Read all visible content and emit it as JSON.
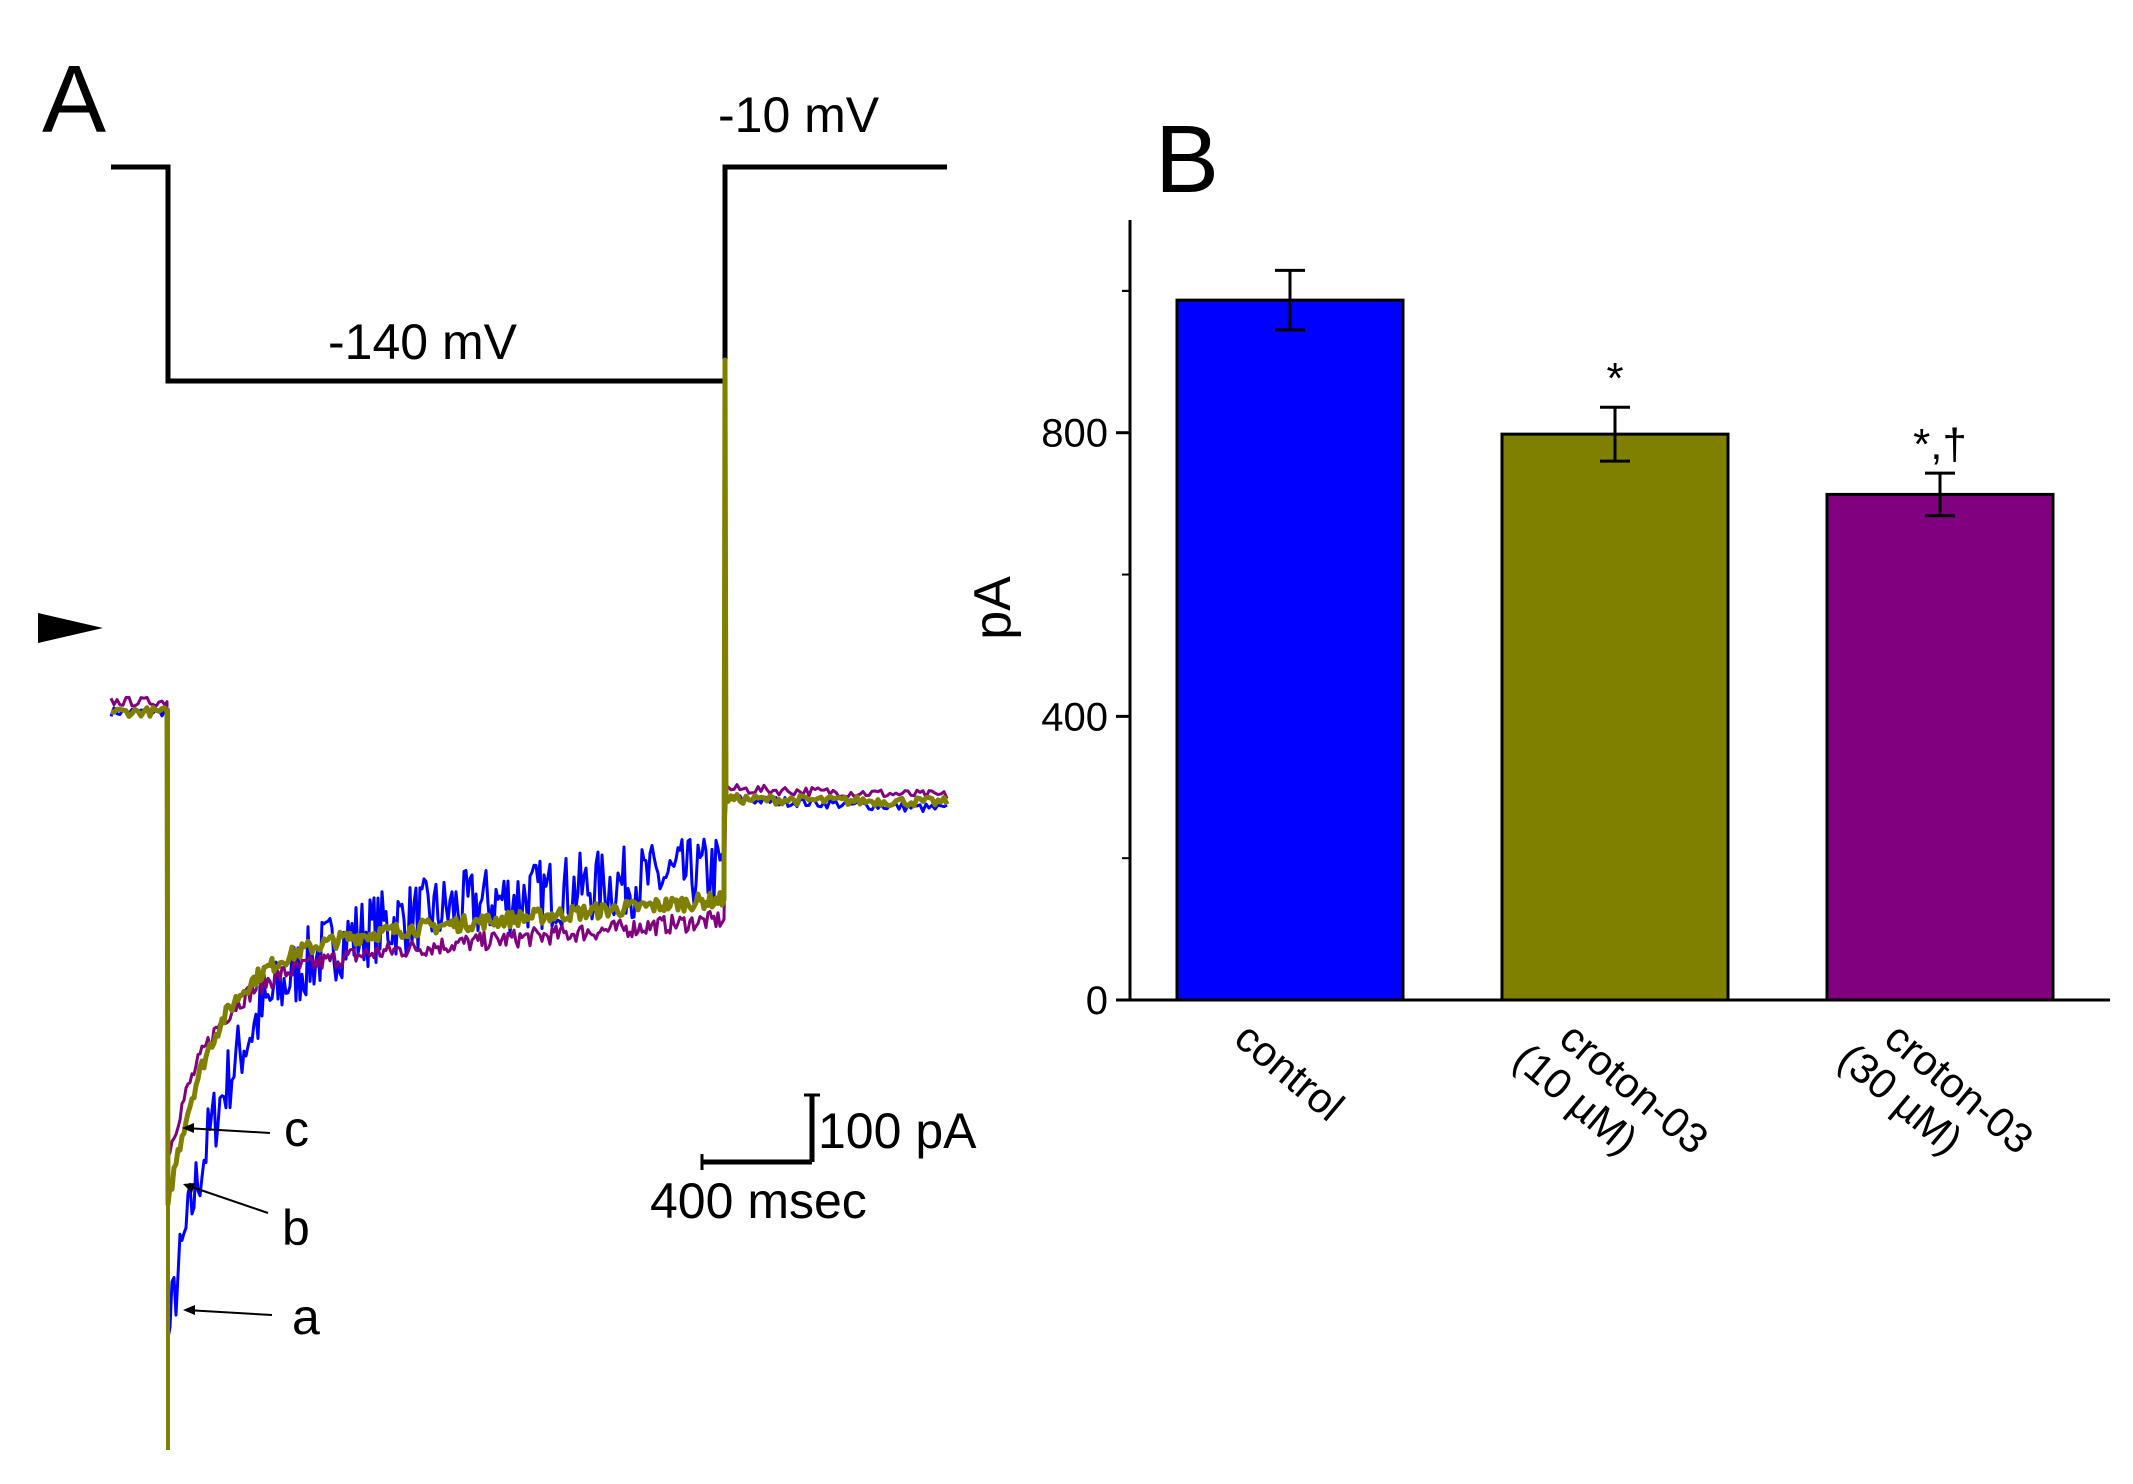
{
  "panel_a": {
    "letter": "A",
    "protocol": {
      "holding_label": "-10 mV",
      "step_label": "-140 mV"
    },
    "trace_labels": [
      "c",
      "b",
      "a"
    ],
    "scale_bar": {
      "current_label": "100 pA",
      "time_label": "400 msec"
    }
  },
  "panel_b": {
    "letter": "B"
  },
  "colors": {
    "control": "#0000ff",
    "croton_10": "#808000",
    "croton_30": "#800080",
    "axis": "#000000"
  },
  "chart_data": [
    {
      "type": "line",
      "title": "",
      "description_of_series_only": "Current traces during hyperpolarizing step from -10 mV to -140 mV",
      "xlabel": "",
      "ylabel": "",
      "scale_bar": {
        "time_ms": 400,
        "current_pA": 100
      },
      "series": [
        {
          "name": "a",
          "label": "control",
          "color": "#0000ff",
          "peak_pA": -1060,
          "late_pA": -470,
          "noise": 45
        },
        {
          "name": "b",
          "label": "croton-03 (10 µM)",
          "color": "#808000",
          "peak_pA": -860,
          "late_pA": -480,
          "noise": 12
        },
        {
          "name": "c",
          "label": "croton-03 (30 µM)",
          "color": "#800080",
          "peak_pA": -790,
          "late_pA": -510,
          "noise": 14
        }
      ]
    },
    {
      "type": "bar",
      "title": "",
      "xlabel": "",
      "ylabel": "pA",
      "ylim": [
        0,
        1100
      ],
      "yticks": [
        0,
        400,
        800
      ],
      "categories": [
        {
          "line1": "control",
          "line2": ""
        },
        {
          "line1": "croton-03",
          "line2": "(10 µM)"
        },
        {
          "line1": "croton-03",
          "line2": "(30 µM)"
        }
      ],
      "values": [
        987,
        798,
        713
      ],
      "errors": [
        42,
        38,
        30
      ],
      "significance": [
        "",
        "*",
        "*,†"
      ],
      "bar_colors": [
        "#0000ff",
        "#808000",
        "#800080"
      ]
    }
  ]
}
